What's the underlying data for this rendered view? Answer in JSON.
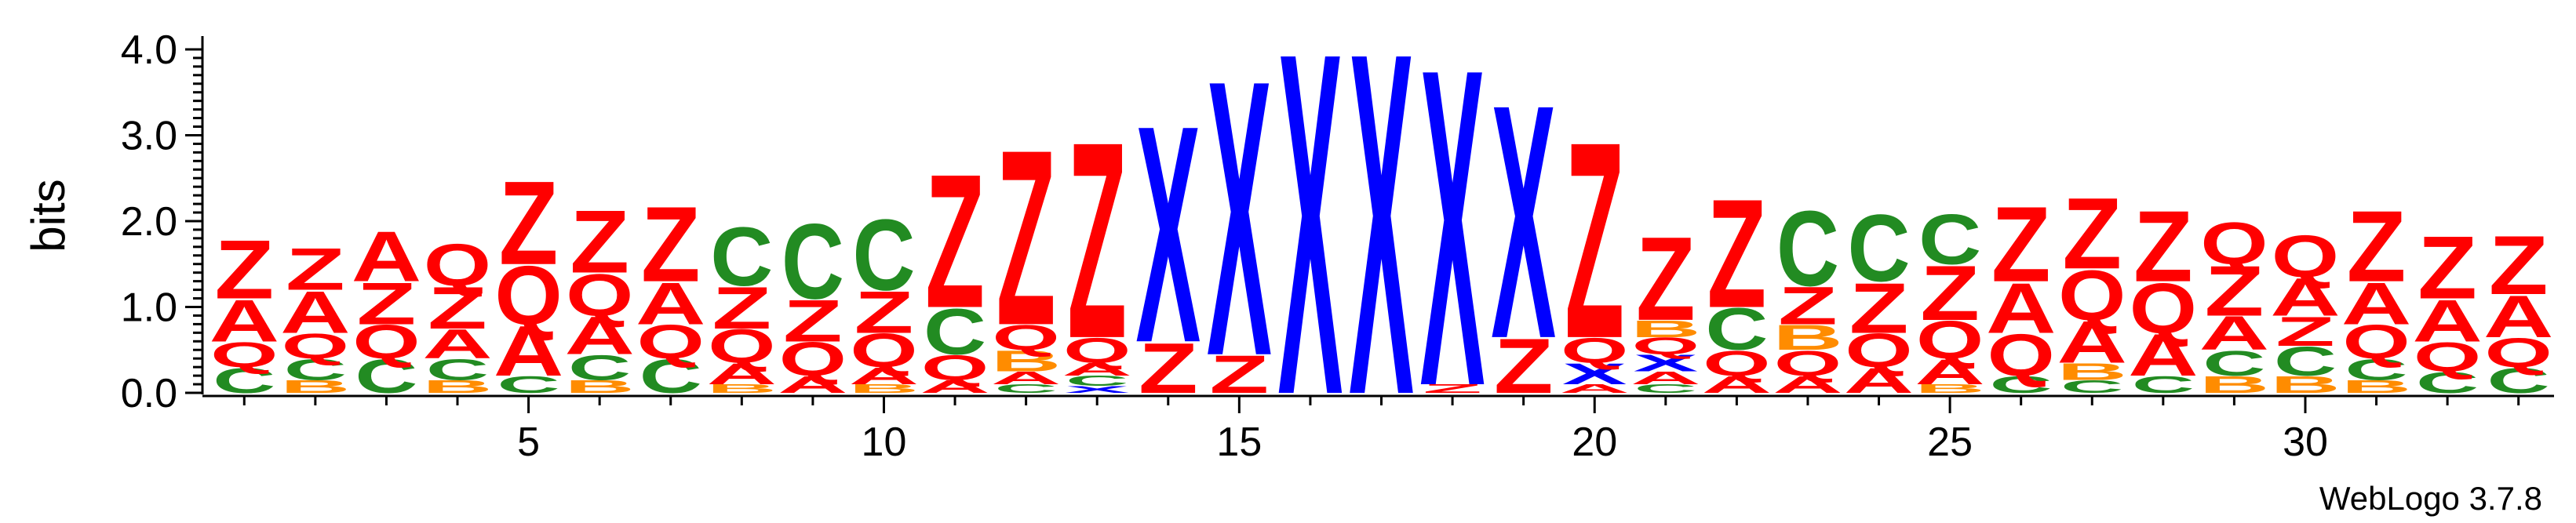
{
  "chart_data": {
    "type": "sequence-logo",
    "ylabel": "bits",
    "ylim": [
      0,
      4.1
    ],
    "yticks": [
      "0.0",
      "1.0",
      "2.0",
      "3.0",
      "4.0"
    ],
    "xticks": [
      5,
      10,
      15,
      20,
      25,
      30
    ],
    "credit": "WebLogo 3.7.8",
    "colors": {
      "Z": "#ff0000",
      "A": "#ff0000",
      "Q": "#ff0000",
      "C": "#228b22",
      "B": "#ff8c00",
      "X": "#0000ff"
    },
    "positions": [
      [
        [
          "C",
          0.3
        ],
        [
          "Q",
          0.3
        ],
        [
          "A",
          0.5
        ],
        [
          "Z",
          0.7
        ]
      ],
      [
        [
          "B",
          0.15
        ],
        [
          "C",
          0.25
        ],
        [
          "Q",
          0.3
        ],
        [
          "A",
          0.5
        ],
        [
          "Z",
          0.5
        ]
      ],
      [
        [
          "C",
          0.4
        ],
        [
          "Q",
          0.4
        ],
        [
          "Z",
          0.5
        ],
        [
          "A",
          0.6
        ]
      ],
      [
        [
          "B",
          0.15
        ],
        [
          "C",
          0.25
        ],
        [
          "A",
          0.35
        ],
        [
          "Z",
          0.5
        ],
        [
          "Q",
          0.5
        ]
      ],
      [
        [
          "C",
          0.2
        ],
        [
          "A",
          0.6
        ],
        [
          "Q",
          0.7
        ],
        [
          "Z",
          1.0
        ]
      ],
      [
        [
          "B",
          0.15
        ],
        [
          "C",
          0.3
        ],
        [
          "A",
          0.45
        ],
        [
          "Q",
          0.5
        ],
        [
          "Z",
          0.75
        ]
      ],
      [
        [
          "C",
          0.4
        ],
        [
          "Q",
          0.4
        ],
        [
          "A",
          0.5
        ],
        [
          "Z",
          0.9
        ]
      ],
      [
        [
          "B",
          0.1
        ],
        [
          "A",
          0.25
        ],
        [
          "Q",
          0.4
        ],
        [
          "Z",
          0.5
        ],
        [
          "C",
          0.7
        ]
      ],
      [
        [
          "A",
          0.2
        ],
        [
          "Q",
          0.4
        ],
        [
          "Z",
          0.5
        ],
        [
          "C",
          0.9
        ]
      ],
      [
        [
          "B",
          0.1
        ],
        [
          "A",
          0.2
        ],
        [
          "Q",
          0.4
        ],
        [
          "Z",
          0.5
        ],
        [
          "C",
          0.85
        ]
      ],
      [
        [
          "A",
          0.15
        ],
        [
          "Q",
          0.3
        ],
        [
          "C",
          0.55
        ],
        [
          "Z",
          1.6
        ]
      ],
      [
        [
          "C",
          0.1
        ],
        [
          "A",
          0.15
        ],
        [
          "B",
          0.25
        ],
        [
          "Q",
          0.3
        ],
        [
          "Z",
          2.1
        ]
      ],
      [
        [
          "X",
          0.08
        ],
        [
          "C",
          0.12
        ],
        [
          "A",
          0.15
        ],
        [
          "Q",
          0.3
        ],
        [
          "Z",
          2.35
        ]
      ],
      [
        [
          "Z",
          0.6
        ],
        [
          "X",
          2.6
        ]
      ],
      [
        [
          "Z",
          0.45
        ],
        [
          "X",
          3.3
        ]
      ],
      [
        [
          "X",
          4.1
        ]
      ],
      [
        [
          "X",
          4.1
        ]
      ],
      [
        [
          "Z",
          0.1
        ],
        [
          "X",
          3.8
        ]
      ],
      [
        [
          "Z",
          0.65
        ],
        [
          "X",
          2.8
        ]
      ],
      [
        [
          "A",
          0.1
        ],
        [
          "X",
          0.25
        ],
        [
          "Q",
          0.3
        ],
        [
          "Z",
          2.35
        ]
      ],
      [
        [
          "C",
          0.1
        ],
        [
          "A",
          0.15
        ],
        [
          "X",
          0.2
        ],
        [
          "Q",
          0.2
        ],
        [
          "B",
          0.2
        ],
        [
          "Z",
          1.0
        ]
      ],
      [
        [
          "A",
          0.2
        ],
        [
          "Q",
          0.3
        ],
        [
          "C",
          0.5
        ],
        [
          "Z",
          1.3
        ]
      ],
      [
        [
          "A",
          0.2
        ],
        [
          "Q",
          0.3
        ],
        [
          "B",
          0.3
        ],
        [
          "Z",
          0.45
        ],
        [
          "C",
          0.9
        ]
      ],
      [
        [
          "A",
          0.3
        ],
        [
          "Q",
          0.4
        ],
        [
          "Z",
          0.6
        ],
        [
          "C",
          0.8
        ]
      ],
      [
        [
          "B",
          0.1
        ],
        [
          "A",
          0.3
        ],
        [
          "Q",
          0.45
        ],
        [
          "Z",
          0.65
        ],
        [
          "C",
          0.6
        ]
      ],
      [
        [
          "C",
          0.2
        ],
        [
          "Q",
          0.5
        ],
        [
          "A",
          0.6
        ],
        [
          "Z",
          0.9
        ]
      ],
      [
        [
          "C",
          0.15
        ],
        [
          "B",
          0.2
        ],
        [
          "A",
          0.5
        ],
        [
          "Q",
          0.6
        ],
        [
          "Z",
          0.85
        ]
      ],
      [
        [
          "C",
          0.2
        ],
        [
          "A",
          0.5
        ],
        [
          "Q",
          0.6
        ],
        [
          "Z",
          0.85
        ]
      ],
      [
        [
          "B",
          0.2
        ],
        [
          "C",
          0.3
        ],
        [
          "A",
          0.4
        ],
        [
          "Z",
          0.6
        ],
        [
          "Q",
          0.5
        ]
      ],
      [
        [
          "B",
          0.2
        ],
        [
          "C",
          0.35
        ],
        [
          "Z",
          0.35
        ],
        [
          "A",
          0.45
        ],
        [
          "Q",
          0.5
        ]
      ],
      [
        [
          "B",
          0.15
        ],
        [
          "C",
          0.25
        ],
        [
          "Q",
          0.4
        ],
        [
          "A",
          0.5
        ],
        [
          "Z",
          0.85
        ]
      ],
      [
        [
          "C",
          0.25
        ],
        [
          "Q",
          0.35
        ],
        [
          "A",
          0.5
        ],
        [
          "Z",
          0.75
        ]
      ],
      [
        [
          "C",
          0.3
        ],
        [
          "Q",
          0.35
        ],
        [
          "A",
          0.5
        ],
        [
          "Z",
          0.7
        ]
      ]
    ]
  }
}
